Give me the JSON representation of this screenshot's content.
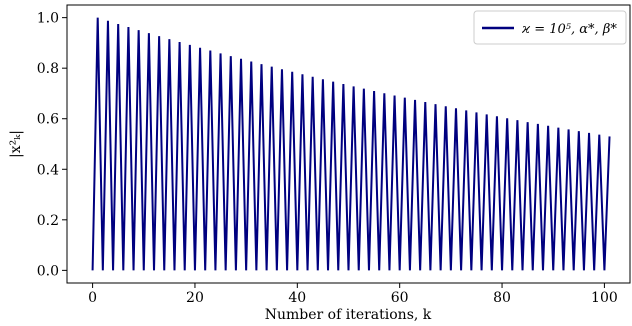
{
  "chart_data": {
    "type": "line",
    "xlabel": "Number of iterations, k",
    "ylabel": "|x²ₖ|",
    "xlim": [
      -5,
      105
    ],
    "ylim": [
      -0.05,
      1.05
    ],
    "xticks": [
      0,
      20,
      40,
      60,
      80,
      100
    ],
    "yticks": [
      0.0,
      0.2,
      0.4,
      0.6,
      0.8,
      1.0
    ],
    "xtick_labels": [
      "0",
      "20",
      "40",
      "60",
      "80",
      "100"
    ],
    "ytick_labels": [
      "0.0",
      "0.2",
      "0.4",
      "0.6",
      "0.8",
      "1.0"
    ],
    "grid": false,
    "legend_position": "top-right",
    "series": [
      {
        "name": "ϰ = 10⁵, α*, β*",
        "color": "#00007f",
        "x_start": 0,
        "x_end": 101,
        "peak_first": 1.0,
        "peak_last": 0.53,
        "trough": 0.0
      }
    ]
  }
}
